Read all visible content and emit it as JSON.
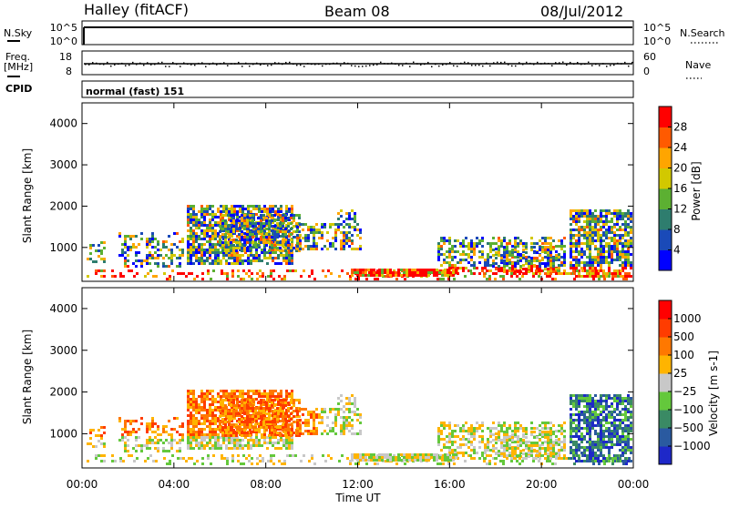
{
  "header": {
    "station": "Halley (fitACF)",
    "beam": "Beam 08",
    "date": "08/Jul/2012"
  },
  "top_panels": {
    "nsky_label": "N.Sky",
    "nsky_ticks": [
      "10^5",
      "10^0"
    ],
    "nsearch_label": "N.Search",
    "nsearch_ticks": [
      "10^5",
      "10^0"
    ],
    "freq_label_1": "Freq.",
    "freq_label_2": "[MHz]",
    "freq_ticks": [
      "18",
      "8"
    ],
    "nave_label": "Nave",
    "nave_ticks": [
      "60",
      "0"
    ],
    "cpid_label": "CPID",
    "cpid_value": "normal (fast) 151"
  },
  "chart_data": [
    {
      "type": "heatmap",
      "name": "power",
      "ylabel": "Slant Range [km]",
      "ylim": [
        180,
        4500
      ],
      "yticks": [
        "4000",
        "3000",
        "2000",
        "1000"
      ],
      "colorbar_label": "Power [dB]",
      "colorbar_ticks": [
        "28",
        "24",
        "20",
        "16",
        "12",
        "8",
        "4"
      ],
      "colorbar_colors": [
        "#0000ff",
        "#1a4ab8",
        "#2e7d6e",
        "#5cb032",
        "#d2c800",
        "#ffa500",
        "#ff5a00",
        "#ff0000"
      ],
      "clim": [
        0,
        32
      ]
    },
    {
      "type": "heatmap",
      "name": "velocity",
      "ylabel": "Slant Range [km]",
      "ylim": [
        180,
        4500
      ],
      "yticks": [
        "4000",
        "3000",
        "2000",
        "1000"
      ],
      "colorbar_label": "Velocity [m s-1]",
      "colorbar_ticks": [
        "1000",
        "500",
        "100",
        "25",
        "−25",
        "−100",
        "−500",
        "−1000"
      ],
      "colorbar_colors": [
        "#1e28c8",
        "#2a5aa0",
        "#3a8a64",
        "#64c83c",
        "#c8c8c8",
        "#ffb400",
        "#ff7800",
        "#ff3c00",
        "#ff0000"
      ]
    }
  ],
  "x_axis": {
    "label": "Time UT",
    "ticks": [
      "00:00",
      "04:00",
      "08:00",
      "12:00",
      "16:00",
      "20:00",
      "00:00"
    ]
  }
}
